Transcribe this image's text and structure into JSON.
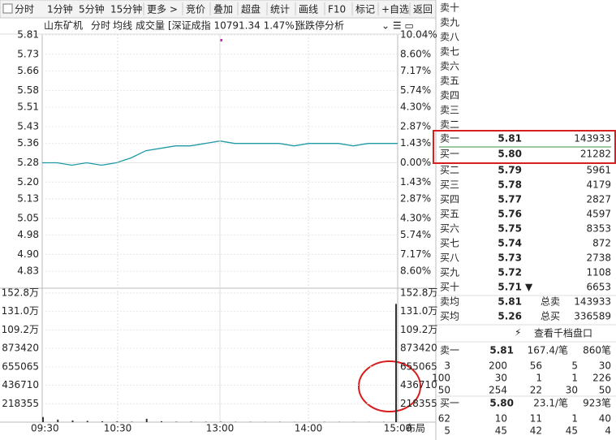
{
  "toolbar": {
    "tabs": [
      "分时",
      "1分钟",
      "5分钟",
      "15分钟",
      "更多 >",
      "竞价",
      "叠加",
      "超盘",
      "统计",
      "画线",
      "F10",
      "标记",
      "+自选",
      "返回"
    ]
  },
  "chart_header": {
    "stock": "山东矿机",
    "mode": "分时",
    "avg_line": "均线",
    "volume": "成交量",
    "index": "[深证成指 10791.34 1.47%]",
    "limit_analysis": "涨跌停分析"
  },
  "price_panel": {
    "ylim": [
      4.76,
      5.81
    ],
    "ticks": [
      {
        "value": 5.81,
        "label": "5.81"
      },
      {
        "value": 5.73,
        "label": "5.73"
      },
      {
        "value": 5.66,
        "label": "5.66"
      },
      {
        "value": 5.58,
        "label": "5.58"
      },
      {
        "value": 5.51,
        "label": "5.51"
      },
      {
        "value": 5.43,
        "label": "5.43"
      },
      {
        "value": 5.36,
        "label": "5.36"
      },
      {
        "value": 5.28,
        "label": "5.28"
      },
      {
        "value": 5.2,
        "label": "5.20"
      },
      {
        "value": 5.13,
        "label": "5.13"
      },
      {
        "value": 5.05,
        "label": "5.05"
      },
      {
        "value": 4.98,
        "label": "4.98"
      },
      {
        "value": 4.9,
        "label": "4.90"
      },
      {
        "value": 4.83,
        "label": "4.83"
      }
    ],
    "pct_labels": [
      "10.04%",
      "8.60%",
      "7.17%",
      "5.74%",
      "4.30%",
      "2.87%",
      "1.43%",
      "0.00%",
      "1.43%",
      "2.87%",
      "4.30%",
      "5.74%",
      "7.17%",
      "8.60%"
    ],
    "price_line": [
      5.28,
      5.28,
      5.27,
      5.28,
      5.27,
      5.28,
      5.3,
      5.33,
      5.34,
      5.35,
      5.35,
      5.36,
      5.37,
      5.36,
      5.36,
      5.36,
      5.36,
      5.35,
      5.36,
      5.36,
      5.36,
      5.35,
      5.36,
      5.36,
      5.36
    ]
  },
  "volume_panel": {
    "ylim": [
      0,
      1528000
    ],
    "ticks": [
      {
        "value": 1528000,
        "label": "152.8万"
      },
      {
        "value": 1310000,
        "label": "131.0万"
      },
      {
        "value": 1092000,
        "label": "109.2万"
      },
      873420,
      655065,
      436710,
      218355
    ],
    "volume": [
      60000,
      30000,
      20000,
      15000,
      10000,
      8000,
      5000,
      40000,
      10000,
      5000,
      5000,
      4000,
      5000,
      3000,
      3000,
      2000,
      3000,
      2000,
      2000,
      3000,
      2000,
      2000,
      2000,
      3000,
      1400000
    ]
  },
  "time_axis": {
    "labels": [
      "09:30",
      "10:30",
      "13:00",
      "14:00",
      "15:00"
    ],
    "layout_button": "布局"
  },
  "order_book": {
    "empty_asks": [
      "卖十",
      "卖九",
      "卖八",
      "卖七",
      "卖六",
      "卖五",
      "卖四",
      "卖三",
      "卖二"
    ],
    "levels": [
      [
        "卖一",
        "5.81",
        143933
      ],
      [
        "买一",
        "5.80",
        21282
      ],
      [
        "买二",
        "5.79",
        5961
      ],
      [
        "买三",
        "5.78",
        4179
      ],
      [
        "买四",
        "5.77",
        2827
      ],
      [
        "买五",
        "5.76",
        4597
      ],
      [
        "买六",
        "5.75",
        8353
      ],
      [
        "买七",
        "5.74",
        872
      ],
      [
        "买八",
        "5.73",
        2738
      ],
      [
        "买九",
        "5.72",
        1108
      ],
      [
        "买十",
        "5.71",
        6653
      ]
    ],
    "summary": [
      [
        "卖均",
        "5.81",
        "总卖",
        143933
      ],
      [
        "买均",
        "5.26",
        "总买",
        336589
      ]
    ],
    "depth_link": "查看千档盘口",
    "depth": [
      {
        "label": "卖一",
        "price": "5.81",
        "avg": "167.4/笔",
        "count": "860笔",
        "orders": [
          [
            3,
            200,
            56,
            5,
            30
          ],
          [
            100,
            30,
            1,
            1,
            226
          ],
          [
            50,
            254,
            22,
            30,
            50
          ]
        ]
      },
      {
        "label": "买一",
        "price": "5.80",
        "avg": "23.1/笔",
        "count": "923笔",
        "orders": [
          [
            62,
            10,
            11,
            1,
            40
          ],
          [
            5,
            45,
            42,
            45,
            4
          ]
        ]
      }
    ]
  }
}
